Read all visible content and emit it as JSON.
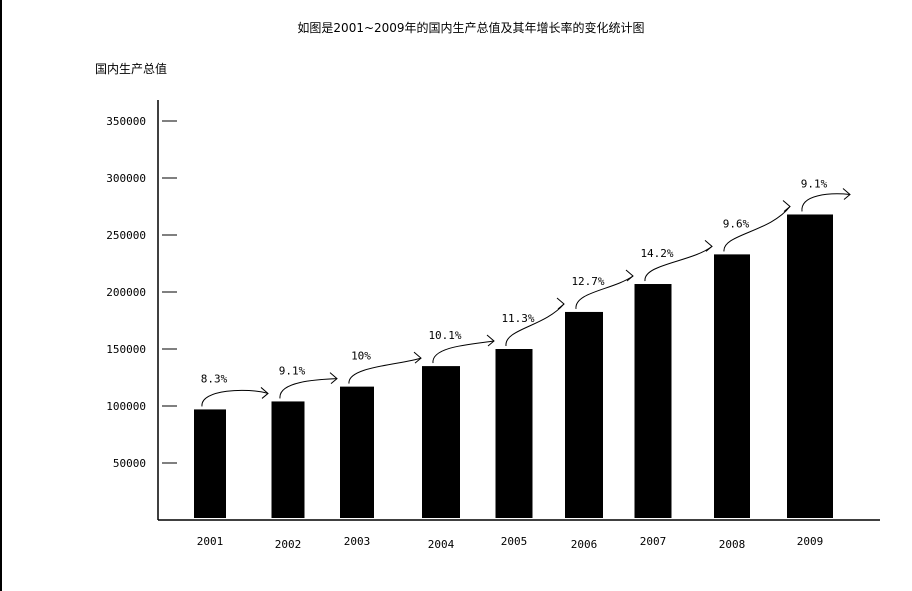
{
  "chart_data": {
    "type": "bar",
    "title": "如图是2001~2009年的国内生产总值及其年增长率的变化统计图",
    "ylabel": "国内生产总值",
    "xlabel": "",
    "categories": [
      "2001",
      "2002",
      "2003",
      "2004",
      "2005",
      "2006",
      "2007",
      "2008",
      "2009"
    ],
    "values": [
      97000,
      104000,
      117000,
      135000,
      150000,
      182500,
      207000,
      233000,
      268000
    ],
    "growth_rates": [
      "8.3%",
      "9.1%",
      "10%",
      "10.1%",
      "11.3%",
      "12.7%",
      "14.2%",
      "9.6%",
      "9.1%"
    ],
    "yticks": [
      50000,
      100000,
      150000,
      200000,
      250000,
      300000,
      350000
    ],
    "ylim": [
      0,
      350000
    ],
    "grid": false,
    "bar_color": "#000000"
  }
}
